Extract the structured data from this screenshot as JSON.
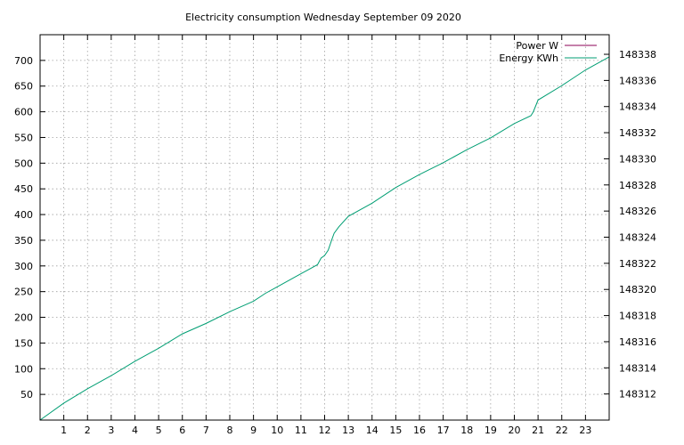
{
  "chart_data": {
    "type": "line",
    "title": "Electricity consumption Wednesday September 09 2020",
    "xlabel": "",
    "ylabel": "",
    "xlim": [
      0,
      24
    ],
    "ylim": [
      0,
      750
    ],
    "y2lim": [
      148310,
      148339.5
    ],
    "grid": true,
    "legend_position": "top-right",
    "x_ticks": [
      1,
      2,
      3,
      4,
      5,
      6,
      7,
      8,
      9,
      10,
      11,
      12,
      13,
      14,
      15,
      16,
      17,
      18,
      19,
      20,
      21,
      22,
      23
    ],
    "y_ticks": [
      50,
      100,
      150,
      200,
      250,
      300,
      350,
      400,
      450,
      500,
      550,
      600,
      650,
      700
    ],
    "y2_ticks": [
      148312,
      148314,
      148316,
      148318,
      148320,
      148322,
      148324,
      148326,
      148328,
      148330,
      148332,
      148334,
      148336,
      148338
    ],
    "series": [
      {
        "name": "Power W",
        "axis": "y1",
        "color": "#8b0055",
        "x": [],
        "values": []
      },
      {
        "name": "Energy KWh",
        "axis": "y2",
        "color": "#009e73",
        "x": [
          0,
          1,
          2,
          3,
          4,
          5,
          6,
          7,
          8,
          9,
          9.5,
          10,
          10.5,
          11,
          11.5,
          11.7,
          11.85,
          12,
          12.15,
          12.3,
          12.4,
          12.6,
          13,
          14,
          15,
          16,
          17,
          18,
          19,
          20,
          20.7,
          20.8,
          21,
          22,
          23,
          24
        ],
        "values": [
          148310,
          148311.3,
          148312.4,
          148313.4,
          148314.5,
          148315.5,
          148316.6,
          148317.4,
          148318.3,
          148319.1,
          148319.7,
          148320.2,
          148320.7,
          148321.2,
          148321.7,
          148321.9,
          148322.4,
          148322.6,
          148323,
          148323.8,
          148324.3,
          148324.8,
          148325.6,
          148326.6,
          148327.8,
          148328.8,
          148329.7,
          148330.7,
          148331.6,
          148332.7,
          148333.3,
          148333.6,
          148334.5,
          148335.6,
          148336.8,
          148337.8
        ]
      }
    ]
  }
}
